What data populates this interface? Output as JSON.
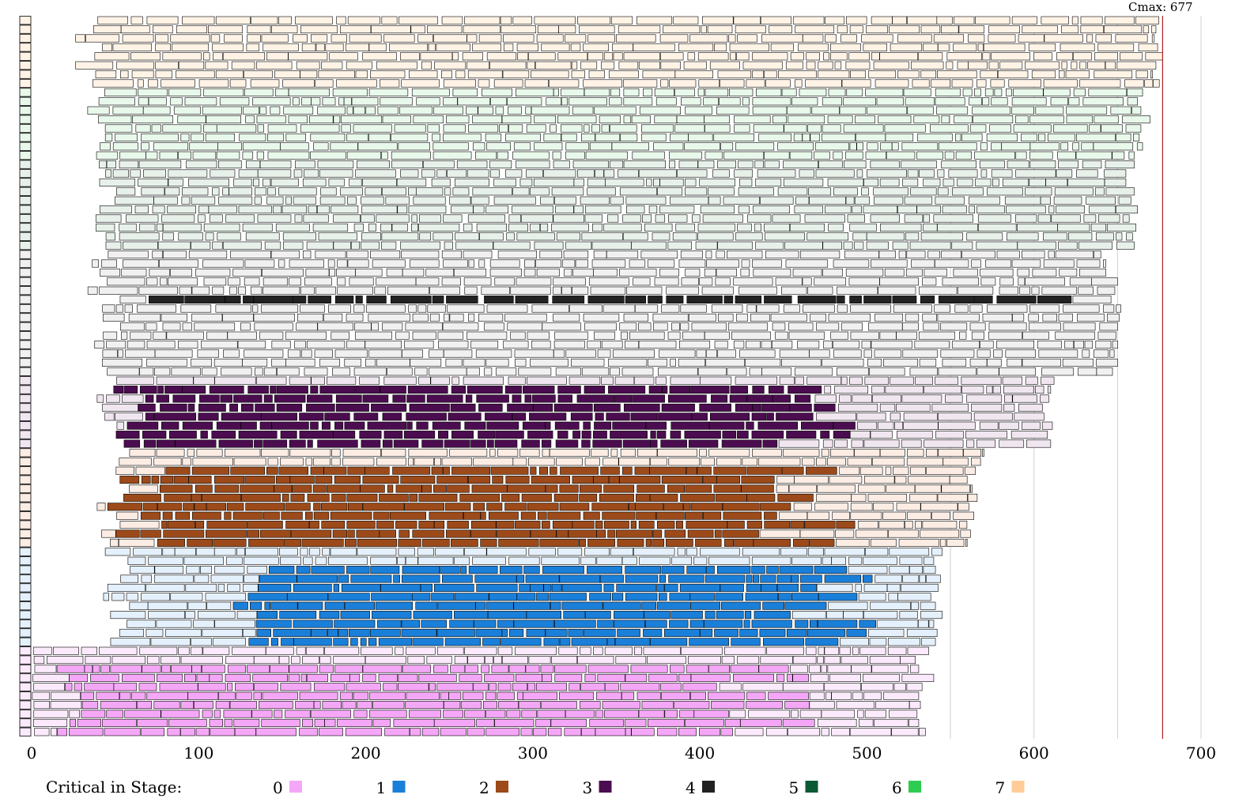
{
  "chart_data": {
    "type": "gantt",
    "title": "",
    "xlabel": "",
    "ylabel": "",
    "xlim": [
      0,
      700
    ],
    "x_ticks": [
      0,
      100,
      200,
      300,
      400,
      500,
      600,
      700
    ],
    "grid_lines": [
      550,
      600,
      650,
      700
    ],
    "cmax": {
      "label": "Cmax: 677",
      "value": 677,
      "color": "#b22222"
    },
    "machine_count": 80,
    "stages": [
      {
        "stage": 0,
        "label": "0",
        "critical_color": "#f5a7f7",
        "idle_color": "#fbeafc",
        "machines": 10,
        "end_times": [
          537,
          529,
          531,
          540,
          533,
          531,
          532,
          530,
          531,
          535
        ],
        "critical_span": [
          0,
          480
        ]
      },
      {
        "stage": 1,
        "label": "1",
        "critical_color": "#1a7fd9",
        "idle_color": "#e4f0fb",
        "machines": 11,
        "end_times": [
          545,
          540,
          541,
          544,
          543,
          540,
          541,
          545,
          540,
          542,
          541
        ],
        "critical_span": [
          110,
          520
        ]
      },
      {
        "stage": 2,
        "label": "2",
        "critical_color": "#9c4a1a",
        "idle_color": "#fbece4",
        "machines": 11,
        "end_times": [
          570,
          568,
          565,
          560,
          563,
          566,
          561,
          564,
          560,
          562,
          560
        ],
        "critical_span": [
          40,
          500
        ]
      },
      {
        "stage": 3,
        "label": "3",
        "critical_color": "#4b0d4f",
        "idle_color": "#f0e6f0",
        "machines": 8,
        "end_times": [
          612,
          610,
          610,
          605,
          607,
          611,
          608,
          610
        ],
        "critical_span": [
          30,
          510
        ]
      },
      {
        "stage": 4,
        "label": "4",
        "critical_color": "#222222",
        "idle_color": "#f0f0f0",
        "machines": 14,
        "end_times": [
          640,
          643,
          643,
          650,
          652,
          650,
          652,
          651,
          650,
          649,
          650,
          648,
          650,
          647
        ],
        "critical_span": [
          45,
          652
        ]
      },
      {
        "stage": 5,
        "label": "5",
        "critical_color": "#0b5a36",
        "idle_color": "#e7f1ea",
        "machines": 10,
        "end_times": [
          660,
          655,
          655,
          660,
          658,
          662,
          657,
          661,
          659,
          660
        ],
        "critical_span": []
      },
      {
        "stage": 6,
        "label": "6",
        "critical_color": "#2ecc52",
        "idle_color": "#e8f8ea",
        "machines": 8,
        "end_times": [
          665,
          662,
          664,
          670,
          664,
          663,
          665,
          660
        ],
        "critical_span": [
          660,
          665
        ]
      },
      {
        "stage": 7,
        "label": "7",
        "critical_color": "#ffcc99",
        "idle_color": "#fff3e6",
        "machines": 8,
        "end_times": [
          676,
          673,
          672,
          674,
          677,
          673,
          671,
          675
        ],
        "critical_span": [
          668,
          677
        ]
      }
    ],
    "legend": {
      "title": "Critical in Stage:",
      "placement": "bottom",
      "entries": [
        {
          "label": "0",
          "color": "#f5a7f7"
        },
        {
          "label": "1",
          "color": "#1a7fd9"
        },
        {
          "label": "2",
          "color": "#9c4a1a"
        },
        {
          "label": "3",
          "color": "#4b0d4f"
        },
        {
          "label": "4",
          "color": "#222222"
        },
        {
          "label": "5",
          "color": "#0b5a36"
        },
        {
          "label": "6",
          "color": "#2ecc52"
        },
        {
          "label": "7",
          "color": "#ffcc99"
        }
      ]
    }
  }
}
